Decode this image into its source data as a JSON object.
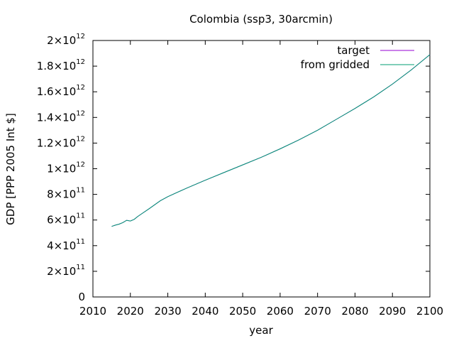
{
  "chart_data": {
    "type": "line",
    "title": "Colombia (ssp3, 30arcmin)",
    "xlabel": "year",
    "ylabel": "GDP [PPP 2005 Int $]",
    "xlim": [
      2010,
      2100
    ],
    "ylim": [
      0,
      2000000000000
    ],
    "grid": false,
    "legend_position": "top-right",
    "x_ticks": [
      "2010",
      "2020",
      "2030",
      "2040",
      "2050",
      "2060",
      "2070",
      "2080",
      "2090",
      "2100"
    ],
    "y_ticks": [
      {
        "value": 0,
        "mant": "0",
        "exp": ""
      },
      {
        "value": 200000000000,
        "mant": "2×10",
        "exp": "11"
      },
      {
        "value": 400000000000,
        "mant": "4×10",
        "exp": "11"
      },
      {
        "value": 600000000000,
        "mant": "6×10",
        "exp": "11"
      },
      {
        "value": 800000000000,
        "mant": "8×10",
        "exp": "11"
      },
      {
        "value": 1000000000000,
        "mant": "1×10",
        "exp": "12"
      },
      {
        "value": 1200000000000,
        "mant": "1.2×10",
        "exp": "12"
      },
      {
        "value": 1400000000000,
        "mant": "1.4×10",
        "exp": "12"
      },
      {
        "value": 1600000000000,
        "mant": "1.6×10",
        "exp": "12"
      },
      {
        "value": 1800000000000,
        "mant": "1.8×10",
        "exp": "12"
      },
      {
        "value": 2000000000000,
        "mant": "2×10",
        "exp": "12"
      }
    ],
    "x": [
      2015,
      2016,
      2017,
      2018,
      2019,
      2020,
      2021,
      2022,
      2023,
      2025,
      2028,
      2030,
      2035,
      2040,
      2045,
      2050,
      2055,
      2060,
      2065,
      2070,
      2075,
      2080,
      2085,
      2090,
      2095,
      2100
    ],
    "series": [
      {
        "name": "target",
        "color": "#9400d3",
        "values": [
          550000000000,
          560000000000,
          568000000000,
          580000000000,
          598000000000,
          592000000000,
          605000000000,
          628000000000,
          648000000000,
          688000000000,
          750000000000,
          782000000000,
          848000000000,
          910000000000,
          970000000000,
          1030000000000,
          1090000000000,
          1155000000000,
          1225000000000,
          1300000000000,
          1385000000000,
          1470000000000,
          1560000000000,
          1660000000000,
          1770000000000,
          1890000000000
        ]
      },
      {
        "name": "from gridded",
        "color": "#009e73",
        "values": [
          550000000000,
          560000000000,
          568000000000,
          580000000000,
          598000000000,
          592000000000,
          605000000000,
          628000000000,
          648000000000,
          688000000000,
          750000000000,
          782000000000,
          848000000000,
          910000000000,
          970000000000,
          1030000000000,
          1090000000000,
          1155000000000,
          1225000000000,
          1300000000000,
          1385000000000,
          1470000000000,
          1560000000000,
          1660000000000,
          1770000000000,
          1890000000000
        ]
      }
    ]
  }
}
